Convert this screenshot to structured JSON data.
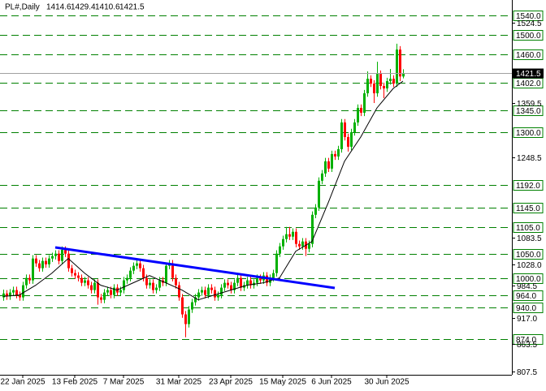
{
  "chart_data": {
    "type": "candlestick",
    "symbol": "PL#,Daily",
    "categories": [
      null,
      null,
      null,
      null,
      null,
      null,
      "22 Jan 2025",
      null,
      null,
      null,
      null,
      null,
      null,
      null,
      null,
      null,
      null,
      null,
      null,
      null,
      null,
      null,
      "13 Feb 2025",
      null,
      null,
      null,
      null,
      null,
      null,
      null,
      null,
      null,
      null,
      null,
      null,
      null,
      null,
      "7 Mar 2025",
      null,
      null,
      null,
      null,
      null,
      null,
      null,
      null,
      null,
      null,
      null,
      null,
      null,
      null,
      null,
      null,
      "31 Mar 2025",
      null,
      null,
      null,
      null,
      null,
      null,
      null,
      null,
      null,
      null,
      null,
      null,
      null,
      null,
      null,
      "23 Apr 2025",
      null,
      null,
      null,
      null,
      null,
      null,
      null,
      null,
      null,
      null,
      null,
      null,
      null,
      null,
      null,
      "15 May 2025",
      null,
      null,
      null,
      null,
      null,
      null,
      null,
      null,
      null,
      null,
      null,
      null,
      null,
      null,
      "6 Jun 2025",
      null,
      null,
      null,
      null,
      null,
      null,
      null,
      null,
      null,
      null,
      null,
      null,
      null,
      null,
      null,
      null,
      "30 Jun 2025",
      null,
      null,
      null,
      null,
      null
    ],
    "candles": [
      [
        960,
        976,
        953,
        968
      ],
      [
        968,
        975,
        955,
        962
      ],
      [
        962,
        977,
        955,
        970
      ],
      [
        970,
        982,
        963,
        975
      ],
      [
        975,
        982,
        958,
        965
      ],
      [
        965,
        972,
        953,
        960
      ],
      [
        960,
        992,
        953,
        985
      ],
      [
        985,
        1007,
        978,
        1000
      ],
      [
        1000,
        1007,
        988,
        995
      ],
      [
        995,
        1047,
        988,
        1040
      ],
      [
        1040,
        1047,
        1023,
        1030
      ],
      [
        1030,
        1037,
        1013,
        1020
      ],
      [
        1020,
        1042,
        1013,
        1035
      ],
      [
        1035,
        1042,
        1021,
        1028
      ],
      [
        1028,
        1047,
        1021,
        1040
      ],
      [
        1040,
        1052,
        1033,
        1045
      ],
      [
        1045,
        1057,
        1038,
        1050
      ],
      [
        1050,
        1057,
        1028,
        1035
      ],
      [
        1035,
        1065,
        1028,
        1058
      ],
      [
        1058,
        1065,
        1043,
        1050
      ],
      [
        1050,
        1057,
        1013,
        1020
      ],
      [
        1020,
        1027,
        1003,
        1010
      ],
      [
        1010,
        1017,
        998,
        1005
      ],
      [
        1005,
        1012,
        993,
        1000
      ],
      [
        1000,
        1007,
        983,
        990
      ],
      [
        990,
        1002,
        983,
        995
      ],
      [
        995,
        1002,
        978,
        985
      ],
      [
        985,
        992,
        968,
        975
      ],
      [
        975,
        997,
        968,
        990
      ],
      [
        990,
        997,
        945,
        960
      ],
      [
        960,
        967,
        948,
        955
      ],
      [
        955,
        977,
        948,
        970
      ],
      [
        970,
        982,
        963,
        975
      ],
      [
        975,
        982,
        958,
        965
      ],
      [
        965,
        987,
        958,
        980
      ],
      [
        980,
        987,
        963,
        970
      ],
      [
        970,
        982,
        963,
        975
      ],
      [
        975,
        1002,
        968,
        995
      ],
      [
        995,
        1007,
        988,
        1000
      ],
      [
        1000,
        1022,
        993,
        1015
      ],
      [
        1015,
        1032,
        1008,
        1025
      ],
      [
        1025,
        1037,
        1018,
        1030
      ],
      [
        1030,
        1037,
        1013,
        1020
      ],
      [
        1020,
        1027,
        993,
        1000
      ],
      [
        1000,
        1007,
        978,
        985
      ],
      [
        985,
        997,
        978,
        990
      ],
      [
        990,
        997,
        968,
        975
      ],
      [
        975,
        987,
        968,
        980
      ],
      [
        980,
        1002,
        973,
        995
      ],
      [
        995,
        1002,
        983,
        990
      ],
      [
        990,
        1032,
        983,
        1025
      ],
      [
        1025,
        1037,
        1018,
        1030
      ],
      [
        1030,
        1037,
        993,
        1000
      ],
      [
        1000,
        1007,
        978,
        985
      ],
      [
        985,
        992,
        953,
        960
      ],
      [
        960,
        967,
        918,
        925
      ],
      [
        925,
        932,
        878,
        905
      ],
      [
        905,
        942,
        898,
        935
      ],
      [
        935,
        957,
        928,
        950
      ],
      [
        950,
        967,
        943,
        960
      ],
      [
        960,
        977,
        953,
        970
      ],
      [
        970,
        982,
        963,
        975
      ],
      [
        975,
        982,
        958,
        965
      ],
      [
        965,
        987,
        958,
        980
      ],
      [
        980,
        987,
        968,
        975
      ],
      [
        975,
        982,
        953,
        960
      ],
      [
        960,
        972,
        953,
        965
      ],
      [
        965,
        987,
        958,
        980
      ],
      [
        980,
        997,
        973,
        990
      ],
      [
        990,
        997,
        978,
        985
      ],
      [
        985,
        992,
        968,
        975
      ],
      [
        975,
        997,
        968,
        990
      ],
      [
        990,
        1007,
        983,
        1000
      ],
      [
        1000,
        1007,
        973,
        980
      ],
      [
        980,
        992,
        973,
        985
      ],
      [
        985,
        1002,
        978,
        995
      ],
      [
        995,
        1002,
        978,
        985
      ],
      [
        985,
        997,
        978,
        990
      ],
      [
        990,
        1007,
        983,
        1000
      ],
      [
        1000,
        1007,
        988,
        995
      ],
      [
        995,
        1012,
        988,
        1005
      ],
      [
        1005,
        1012,
        983,
        990
      ],
      [
        990,
        1007,
        983,
        1000
      ],
      [
        1000,
        1017,
        993,
        1010
      ],
      [
        1010,
        1057,
        1003,
        1050
      ],
      [
        1050,
        1072,
        1043,
        1065
      ],
      [
        1065,
        1087,
        1058,
        1080
      ],
      [
        1080,
        1105,
        1073,
        1090
      ],
      [
        1090,
        1105,
        1078,
        1085
      ],
      [
        1085,
        1102,
        1078,
        1095
      ],
      [
        1095,
        1102,
        1063,
        1070
      ],
      [
        1070,
        1077,
        1058,
        1065
      ],
      [
        1065,
        1082,
        1058,
        1075
      ],
      [
        1075,
        1082,
        1045,
        1060
      ],
      [
        1060,
        1077,
        1053,
        1070
      ],
      [
        1070,
        1137,
        1063,
        1130
      ],
      [
        1130,
        1152,
        1123,
        1145
      ],
      [
        1145,
        1207,
        1138,
        1200
      ],
      [
        1200,
        1222,
        1193,
        1215
      ],
      [
        1215,
        1247,
        1208,
        1240
      ],
      [
        1240,
        1247,
        1218,
        1225
      ],
      [
        1225,
        1262,
        1218,
        1255
      ],
      [
        1255,
        1262,
        1243,
        1250
      ],
      [
        1250,
        1272,
        1243,
        1265
      ],
      [
        1265,
        1327,
        1258,
        1320
      ],
      [
        1320,
        1327,
        1283,
        1290
      ],
      [
        1290,
        1297,
        1260,
        1270
      ],
      [
        1270,
        1307,
        1263,
        1300
      ],
      [
        1300,
        1327,
        1293,
        1320
      ],
      [
        1320,
        1357,
        1313,
        1350
      ],
      [
        1350,
        1357,
        1333,
        1340
      ],
      [
        1340,
        1387,
        1333,
        1380
      ],
      [
        1380,
        1425,
        1373,
        1410
      ],
      [
        1410,
        1417,
        1393,
        1400
      ],
      [
        1400,
        1407,
        1360,
        1380
      ],
      [
        1380,
        1445,
        1373,
        1420
      ],
      [
        1420,
        1427,
        1388,
        1395
      ],
      [
        1395,
        1402,
        1370,
        1390
      ],
      [
        1390,
        1412,
        1383,
        1405
      ],
      [
        1405,
        1430,
        1398,
        1410
      ],
      [
        1410,
        1417,
        1393,
        1400
      ],
      [
        1400,
        1482,
        1393,
        1470
      ],
      [
        1470,
        1477,
        1405,
        1414.6
      ],
      [
        1414.6,
        1429.4,
        1410.6,
        1421.5
      ]
    ],
    "up_color": "#00b000",
    "down_color": "#ff0000",
    "moving_average": {
      "color": "#000000",
      "x": [
        0,
        5,
        10,
        15,
        20,
        25,
        30,
        35,
        40,
        45,
        50,
        55,
        60,
        65,
        70,
        75,
        80,
        85,
        90,
        95,
        100,
        105,
        110,
        115,
        120,
        123
      ],
      "values": [
        962,
        965,
        985,
        1010,
        1040,
        1010,
        985,
        975,
        990,
        1005,
        990,
        975,
        955,
        965,
        975,
        985,
        990,
        1000,
        1055,
        1075,
        1155,
        1240,
        1290,
        1350,
        1390,
        1405
      ]
    },
    "trendline": {
      "color": "#0000ff",
      "x": [
        16,
        102
      ],
      "values": [
        1062.8,
        979.4
      ]
    },
    "levels": [
      {
        "value": 1540,
        "label": "1540.0"
      },
      {
        "value": 1500,
        "label": "1500.0"
      },
      {
        "value": 1460,
        "label": "1460.0"
      },
      {
        "value": 1402,
        "label": "1402.0"
      },
      {
        "value": 1345,
        "label": "1345.0"
      },
      {
        "value": 1300,
        "label": "1300.0"
      },
      {
        "value": 1192,
        "label": "1192.0"
      },
      {
        "value": 1145,
        "label": "1145.0"
      },
      {
        "value": 1105,
        "label": "1105.0"
      },
      {
        "value": 1050,
        "label": "1050.0"
      },
      {
        "value": 1000,
        "label": "1000.0"
      },
      {
        "value": 964,
        "label": "964.0"
      },
      {
        "value": 940,
        "label": "940.0"
      },
      {
        "value": 874,
        "label": "874.0"
      }
    ],
    "level_color": "#008000",
    "ylim": [
      774,
      1572
    ],
    "yticks": [
      {
        "value": 1524.5,
        "label": "1524.5"
      },
      {
        "value": 1359.5,
        "label": "1359.5"
      },
      {
        "value": 1248.5,
        "label": "1248.5"
      },
      {
        "value": 1083.5,
        "label": "1083.5"
      },
      {
        "value": 1028,
        "label": "1028.0"
      },
      {
        "value": 984.5,
        "label": "984.5"
      },
      {
        "value": 917,
        "label": "917.0"
      },
      {
        "value": 863.5,
        "label": "863.5"
      },
      {
        "value": 807.5,
        "label": "807.5"
      }
    ],
    "grid": false
  }
}
